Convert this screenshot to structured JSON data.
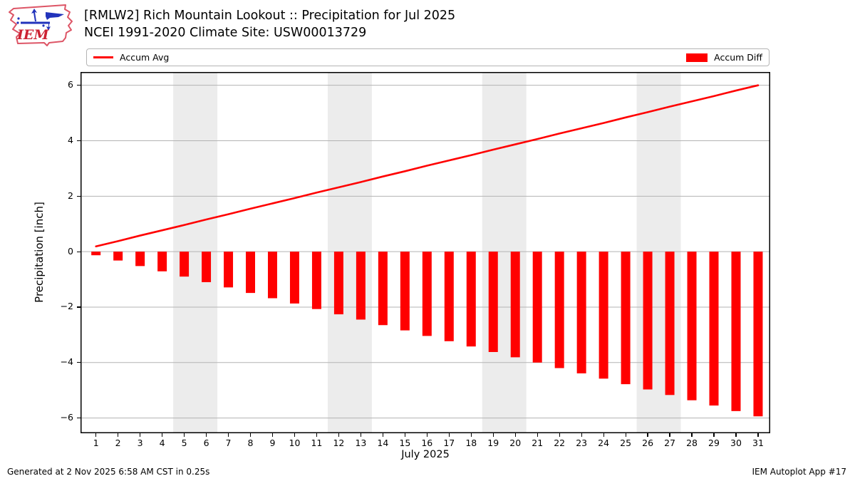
{
  "header": {
    "title_line1": "[RMLW2] Rich Mountain Lookout :: Precipitation for Jul 2025",
    "title_line2": "NCEI 1991-2020 Climate Site: USW00013729",
    "logo_text": "IEM"
  },
  "legend": {
    "avg_label": "Accum Avg",
    "diff_label": "Accum Diff"
  },
  "footer": {
    "left": "Generated at 2 Nov 2025 6:58 AM CST in 0.25s",
    "right": "IEM Autoplot App #17"
  },
  "colors": {
    "series_red": "#ff0000",
    "grid": "#b3b3b3",
    "weekend_band": "#ececec",
    "axis_border": "#000000",
    "logo_red": "#cc2233",
    "logo_outline": "#dd5566",
    "logo_blue": "#2233bb"
  },
  "chart_data": {
    "type": "bar",
    "title": "[RMLW2] Rich Mountain Lookout :: Precipitation for Jul 2025",
    "subtitle": "NCEI 1991-2020 Climate Site: USW00013729",
    "xlabel": "July 2025",
    "ylabel": "Precipitation [inch]",
    "x": [
      1,
      2,
      3,
      4,
      5,
      6,
      7,
      8,
      9,
      10,
      11,
      12,
      13,
      14,
      15,
      16,
      17,
      18,
      19,
      20,
      21,
      22,
      23,
      24,
      25,
      26,
      27,
      28,
      29,
      30,
      31
    ],
    "series": [
      {
        "name": "Accum Avg",
        "type": "line",
        "color": "#ff0000",
        "values": [
          0.19,
          0.38,
          0.58,
          0.77,
          0.96,
          1.16,
          1.35,
          1.55,
          1.74,
          1.93,
          2.13,
          2.32,
          2.51,
          2.71,
          2.9,
          3.1,
          3.29,
          3.48,
          3.68,
          3.87,
          4.06,
          4.26,
          4.45,
          4.64,
          4.84,
          5.03,
          5.23,
          5.42,
          5.61,
          5.81,
          6.0
        ]
      },
      {
        "name": "Accum Diff",
        "type": "bar",
        "color": "#ff0000",
        "values": [
          -0.13,
          -0.32,
          -0.52,
          -0.71,
          -0.9,
          -1.1,
          -1.29,
          -1.49,
          -1.68,
          -1.87,
          -2.07,
          -2.26,
          -2.45,
          -2.65,
          -2.84,
          -3.04,
          -3.23,
          -3.42,
          -3.62,
          -3.81,
          -4.0,
          -4.2,
          -4.39,
          -4.58,
          -4.78,
          -4.97,
          -5.17,
          -5.36,
          -5.55,
          -5.75,
          -5.94
        ]
      }
    ],
    "ylim": [
      -6.55,
      6.48
    ],
    "xlim": [
      0.3,
      31.55
    ],
    "yticks": [
      -6,
      -4,
      -2,
      0,
      2,
      4,
      6
    ],
    "xticks": [
      1,
      2,
      3,
      4,
      5,
      6,
      7,
      8,
      9,
      10,
      11,
      12,
      13,
      14,
      15,
      16,
      17,
      18,
      19,
      20,
      21,
      22,
      23,
      24,
      25,
      26,
      27,
      28,
      29,
      30,
      31
    ],
    "weekend_bands": [
      [
        4.5,
        6.5
      ],
      [
        11.5,
        13.5
      ],
      [
        18.5,
        20.5
      ],
      [
        25.5,
        27.5
      ]
    ],
    "grid": true,
    "legend_position": "top"
  }
}
